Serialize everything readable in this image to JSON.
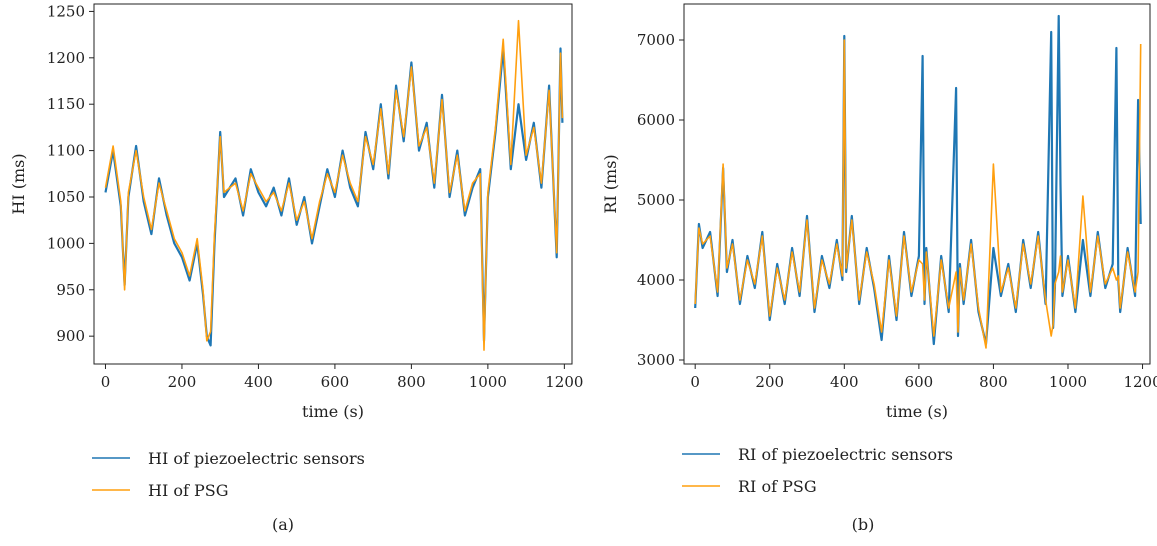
{
  "colors": {
    "piezo": "#1f77b4",
    "psg": "#ff9f0f",
    "axis": "#222222"
  },
  "chart_data": [
    {
      "type": "line",
      "caption": "(a)",
      "xlabel": "time (s)",
      "ylabel": "HI (ms)",
      "xlim": [
        -30,
        1220
      ],
      "ylim": [
        870,
        1258
      ],
      "xticks": [
        0,
        200,
        400,
        600,
        800,
        1000,
        1200
      ],
      "yticks": [
        900,
        950,
        1000,
        1050,
        1100,
        1150,
        1200,
        1250
      ],
      "legend_position": "below",
      "series": [
        {
          "name": "HI of piezoelectric sensors",
          "color_key": "piezo",
          "x": [
            0,
            20,
            40,
            50,
            60,
            80,
            100,
            120,
            140,
            160,
            180,
            200,
            220,
            240,
            255,
            265,
            275,
            285,
            300,
            310,
            340,
            360,
            380,
            400,
            420,
            440,
            460,
            480,
            500,
            520,
            540,
            560,
            580,
            600,
            620,
            640,
            660,
            680,
            700,
            720,
            740,
            760,
            780,
            800,
            820,
            840,
            860,
            880,
            900,
            920,
            940,
            960,
            980,
            990,
            1000,
            1020,
            1040,
            1060,
            1080,
            1100,
            1120,
            1140,
            1160,
            1180,
            1190,
            1195
          ],
          "y": [
            1055,
            1100,
            1040,
            955,
            1050,
            1105,
            1045,
            1010,
            1070,
            1030,
            1000,
            985,
            960,
            1000,
            945,
            900,
            890,
            1000,
            1120,
            1050,
            1070,
            1030,
            1080,
            1055,
            1040,
            1060,
            1030,
            1070,
            1020,
            1050,
            1000,
            1040,
            1080,
            1050,
            1100,
            1060,
            1040,
            1120,
            1080,
            1150,
            1070,
            1170,
            1110,
            1195,
            1100,
            1130,
            1060,
            1160,
            1050,
            1100,
            1030,
            1060,
            1080,
            895,
            1050,
            1120,
            1210,
            1080,
            1150,
            1090,
            1130,
            1060,
            1170,
            985,
            1210,
            1130
          ]
        },
        {
          "name": "HI of PSG",
          "color_key": "psg",
          "x": [
            0,
            20,
            40,
            50,
            60,
            80,
            100,
            120,
            140,
            160,
            180,
            200,
            220,
            240,
            255,
            265,
            275,
            285,
            300,
            310,
            340,
            360,
            380,
            400,
            420,
            440,
            460,
            480,
            500,
            520,
            540,
            560,
            580,
            600,
            620,
            640,
            660,
            680,
            700,
            720,
            740,
            760,
            780,
            800,
            820,
            840,
            860,
            880,
            900,
            920,
            940,
            960,
            980,
            990,
            1000,
            1020,
            1040,
            1060,
            1080,
            1100,
            1120,
            1140,
            1160,
            1180,
            1190,
            1195
          ],
          "y": [
            1060,
            1105,
            1045,
            950,
            1055,
            1100,
            1050,
            1015,
            1065,
            1035,
            1005,
            990,
            965,
            1005,
            950,
            895,
            905,
            1010,
            1115,
            1055,
            1065,
            1035,
            1075,
            1060,
            1045,
            1055,
            1035,
            1065,
            1025,
            1045,
            1005,
            1045,
            1075,
            1055,
            1095,
            1065,
            1045,
            1115,
            1085,
            1145,
            1075,
            1165,
            1115,
            1190,
            1105,
            1125,
            1065,
            1155,
            1055,
            1095,
            1035,
            1065,
            1075,
            885,
            1055,
            1125,
            1220,
            1085,
            1240,
            1095,
            1125,
            1065,
            1165,
            990,
            1205,
            1135
          ]
        }
      ]
    },
    {
      "type": "line",
      "caption": "(b)",
      "xlabel": "time (s)",
      "ylabel": "RI (ms)",
      "xlim": [
        -30,
        1220
      ],
      "ylim": [
        2950,
        7450
      ],
      "xticks": [
        0,
        200,
        400,
        600,
        800,
        1000,
        1200
      ],
      "yticks": [
        3000,
        4000,
        5000,
        6000,
        7000
      ],
      "legend_position": "below",
      "series": [
        {
          "name": "RI of piezoelectric sensors",
          "color_key": "piezo",
          "x": [
            0,
            10,
            20,
            40,
            60,
            75,
            85,
            100,
            120,
            140,
            160,
            180,
            200,
            220,
            240,
            260,
            280,
            300,
            320,
            340,
            360,
            380,
            395,
            400,
            405,
            420,
            440,
            460,
            480,
            500,
            520,
            540,
            560,
            580,
            600,
            610,
            615,
            620,
            640,
            660,
            680,
            700,
            705,
            710,
            720,
            740,
            760,
            780,
            800,
            820,
            840,
            860,
            880,
            900,
            920,
            940,
            955,
            960,
            965,
            975,
            980,
            985,
            1000,
            1020,
            1040,
            1060,
            1080,
            1100,
            1120,
            1130,
            1135,
            1140,
            1160,
            1180,
            1188,
            1195
          ],
          "y": [
            3650,
            4700,
            4400,
            4600,
            3800,
            5400,
            4100,
            4500,
            3700,
            4300,
            3900,
            4600,
            3500,
            4200,
            3700,
            4400,
            3800,
            4800,
            3600,
            4300,
            3900,
            4500,
            4000,
            7050,
            4100,
            4800,
            3700,
            4400,
            3900,
            3250,
            4300,
            3500,
            4600,
            3800,
            4300,
            6800,
            3700,
            4400,
            3200,
            4300,
            3600,
            6400,
            3300,
            4200,
            3700,
            4500,
            3600,
            3200,
            4400,
            3800,
            4200,
            3600,
            4500,
            3900,
            4600,
            3700,
            7100,
            3400,
            3900,
            7300,
            5200,
            3800,
            4300,
            3600,
            4500,
            3800,
            4600,
            3900,
            4200,
            6900,
            4000,
            3600,
            4400,
            3800,
            6250,
            4700
          ]
        },
        {
          "name": "RI of PSG",
          "color_key": "psg",
          "x": [
            0,
            10,
            20,
            40,
            60,
            75,
            85,
            100,
            120,
            140,
            160,
            180,
            200,
            220,
            240,
            260,
            280,
            300,
            320,
            340,
            360,
            380,
            395,
            400,
            405,
            420,
            440,
            460,
            480,
            500,
            520,
            540,
            560,
            580,
            600,
            610,
            615,
            620,
            640,
            660,
            680,
            700,
            705,
            710,
            720,
            740,
            760,
            780,
            800,
            820,
            840,
            860,
            880,
            900,
            920,
            940,
            955,
            960,
            965,
            975,
            980,
            985,
            1000,
            1020,
            1040,
            1060,
            1080,
            1100,
            1120,
            1130,
            1135,
            1140,
            1160,
            1180,
            1188,
            1195
          ],
          "y": [
            3700,
            4650,
            4450,
            4550,
            3850,
            5450,
            4150,
            4450,
            3750,
            4250,
            3950,
            4550,
            3550,
            4150,
            3750,
            4350,
            3850,
            4750,
            3650,
            4250,
            3950,
            4450,
            4050,
            7000,
            4150,
            4750,
            3750,
            4350,
            3950,
            3350,
            4250,
            3550,
            4550,
            3850,
            4250,
            4200,
            3750,
            4350,
            3300,
            4250,
            3650,
            4100,
            3350,
            4150,
            3750,
            4450,
            3650,
            3150,
            5450,
            3850,
            4150,
            3650,
            4450,
            3950,
            4550,
            3750,
            3300,
            3450,
            3950,
            4100,
            4300,
            3850,
            4250,
            3650,
            5050,
            3850,
            4550,
            3950,
            4150,
            4000,
            4050,
            3650,
            4350,
            3850,
            4100,
            6950
          ]
        }
      ]
    }
  ]
}
